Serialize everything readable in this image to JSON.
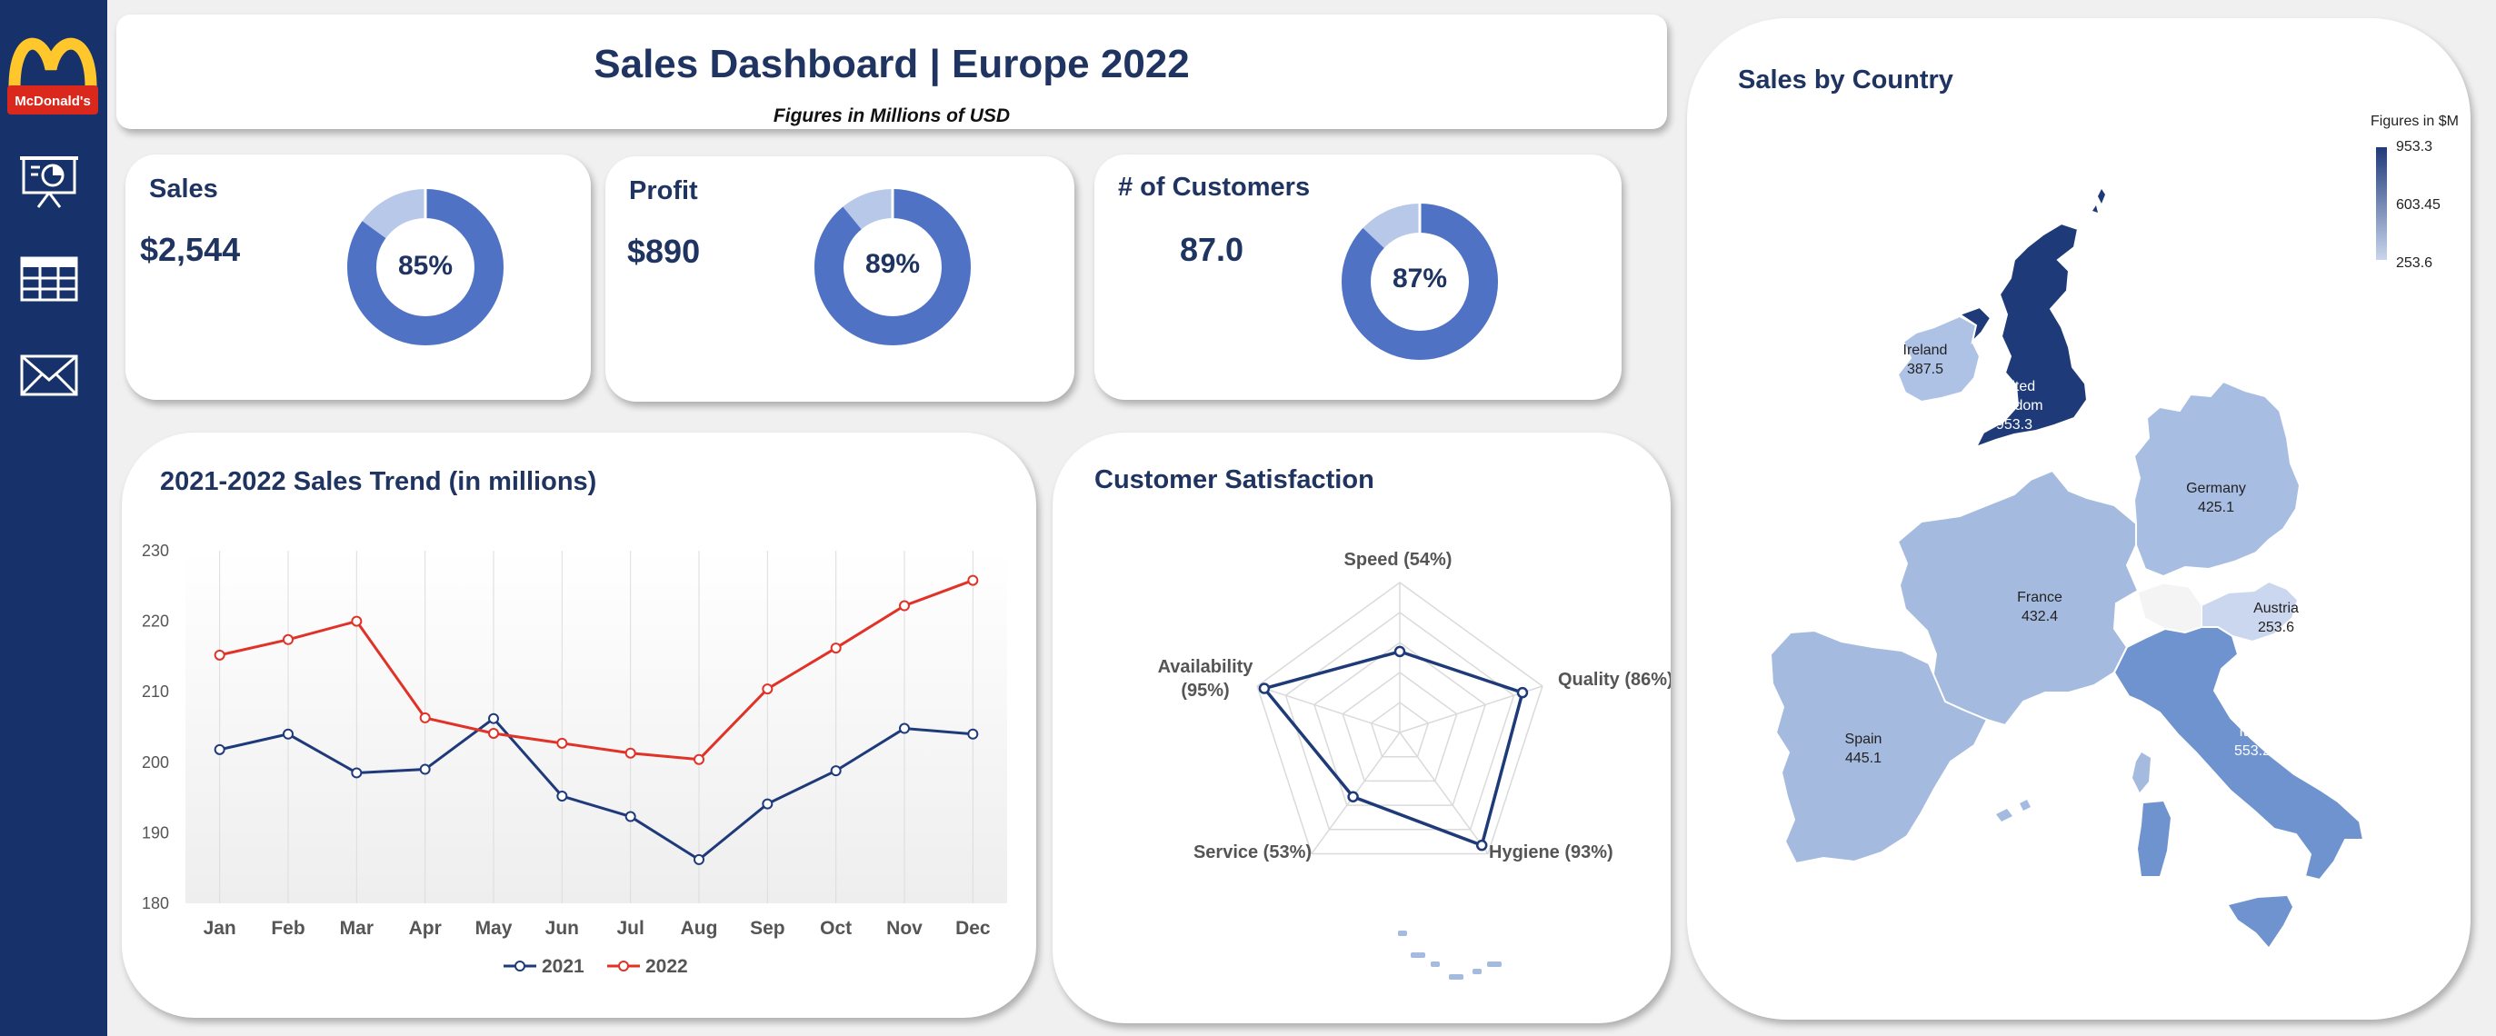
{
  "header": {
    "title": "Sales Dashboard | Europe 2022",
    "subtitle": "Figures in Millions of  USD",
    "logo_text": "McDonald's"
  },
  "sidebar": {
    "icons": [
      "presentation-chart-icon",
      "table-grid-icon",
      "envelope-icon"
    ]
  },
  "kpis": [
    {
      "label": "Sales",
      "value": "$2,544",
      "percent_label": "85%",
      "percent": 85
    },
    {
      "label": "Profit",
      "value": "$890",
      "percent_label": "89%",
      "percent": 89
    },
    {
      "label": "# of Customers",
      "value": "87.0",
      "percent_label": "87%",
      "percent": 87
    }
  ],
  "colors": {
    "navy": "#17326a",
    "title": "#1f3461",
    "donut_main": "#4f72c4",
    "donut_rest": "#b8c8e8",
    "line_2021": "#1f3a7a",
    "line_2022": "#e03226",
    "map_low": "#c9d5ec",
    "map_high": "#1e3a78"
  },
  "chart_data": [
    {
      "type": "line",
      "title": "2021-2022 Sales Trend (in millions)",
      "categories": [
        "Jan",
        "Feb",
        "Mar",
        "Apr",
        "May",
        "Jun",
        "Jul",
        "Aug",
        "Sep",
        "Oct",
        "Nov",
        "Dec"
      ],
      "series": [
        {
          "name": "2021",
          "values": [
            201.8,
            204.0,
            198.5,
            199.0,
            206.2,
            195.2,
            192.3,
            186.2,
            194.1,
            198.8,
            204.8,
            204.0
          ]
        },
        {
          "name": "2022",
          "values": [
            215.2,
            217.4,
            220.0,
            206.3,
            204.1,
            202.7,
            201.3,
            200.4,
            210.4,
            216.2,
            222.2,
            225.8
          ]
        }
      ],
      "ylim": [
        180,
        230
      ],
      "yticks": [
        180,
        190,
        200,
        210,
        220,
        230
      ],
      "legend": "bottom",
      "grid": "vertical"
    },
    {
      "type": "radar",
      "title": "Customer Satisfaction",
      "categories": [
        "Speed (54%)",
        "Quality (86%)",
        "Hygiene (93%)",
        "Service (53%)",
        "Availability (95%)"
      ],
      "values": [
        54,
        86,
        93,
        53,
        95
      ],
      "range": [
        0,
        100
      ]
    },
    {
      "type": "map",
      "title": "Sales by Country",
      "legend_title": "Figures in $M",
      "legend_ticks": [
        "953.3",
        "603.45",
        "253.6"
      ],
      "countries": [
        {
          "name": "United Kingdom",
          "name_lines": [
            "United",
            "Kingdom"
          ],
          "value": "953.3"
        },
        {
          "name": "Ireland",
          "name_lines": [
            "Ireland"
          ],
          "value": "387.5"
        },
        {
          "name": "Germany",
          "name_lines": [
            "Germany"
          ],
          "value": "425.1"
        },
        {
          "name": "France",
          "name_lines": [
            "France"
          ],
          "value": "432.4"
        },
        {
          "name": "Austria",
          "name_lines": [
            "Austria"
          ],
          "value": "253.6"
        },
        {
          "name": "Spain",
          "name_lines": [
            "Spain"
          ],
          "value": "445.1"
        },
        {
          "name": "Italy",
          "name_lines": [
            "Italy"
          ],
          "value": "553.2"
        }
      ]
    }
  ]
}
